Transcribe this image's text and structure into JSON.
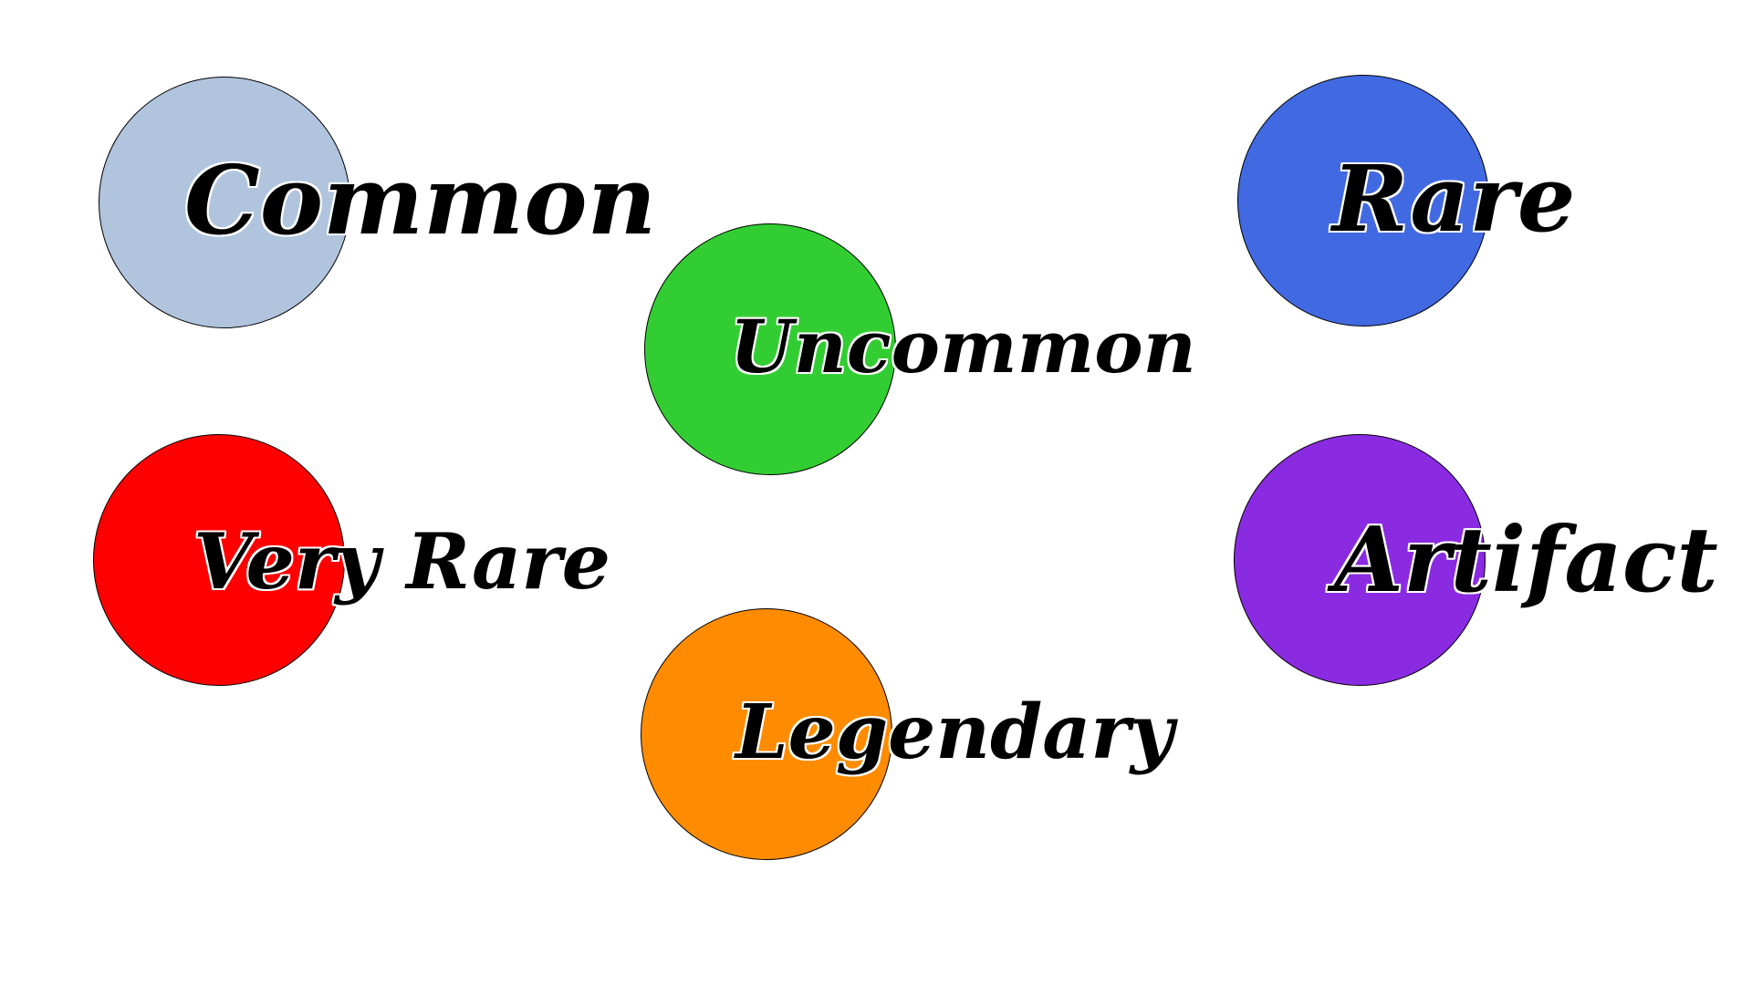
{
  "rarities": [
    {
      "label": "Common",
      "color": "#b0c4de"
    },
    {
      "label": "Uncommon",
      "color": "#32cd32"
    },
    {
      "label": "Rare",
      "color": "#4169e1"
    },
    {
      "label": "Very Rare",
      "color": "#ff0000"
    },
    {
      "label": "Artifact",
      "color": "#8a2be2"
    },
    {
      "label": "Legendary",
      "color": "#ff8c00"
    }
  ]
}
